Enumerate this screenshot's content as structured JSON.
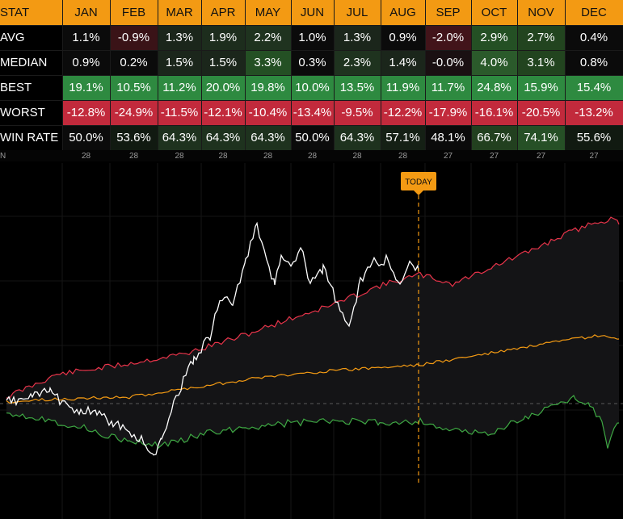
{
  "table": {
    "header": [
      "STAT",
      "JAN",
      "FEB",
      "MAR",
      "APR",
      "MAY",
      "JUN",
      "JUL",
      "AUG",
      "SEP",
      "OCT",
      "NOV",
      "DEC"
    ],
    "rows": [
      {
        "label": "AVG",
        "cells": [
          "1.1%",
          "-0.9%",
          "1.3%",
          "1.9%",
          "2.2%",
          "1.0%",
          "1.3%",
          "0.9%",
          "-2.0%",
          "2.9%",
          "2.7%",
          "0.4%"
        ],
        "colors": [
          "#0b0b0b",
          "#3a1317",
          "#1b261b",
          "#1d2d1d",
          "#1f331f",
          "#0b0b0b",
          "#1b261b",
          "#0b0b0b",
          "#42141a",
          "#245024",
          "#22441f",
          "#0b0b0b"
        ]
      },
      {
        "label": "MEDIAN",
        "cells": [
          "0.9%",
          "0.2%",
          "1.5%",
          "1.5%",
          "3.3%",
          "0.3%",
          "2.3%",
          "1.4%",
          "-0.0%",
          "4.0%",
          "3.1%",
          "0.8%"
        ],
        "colors": [
          "#0b0b0b",
          "#0b0b0b",
          "#1b261b",
          "#1b261b",
          "#245024",
          "#0b0b0b",
          "#1f331f",
          "#1b261b",
          "#1a1012",
          "#2b5a2b",
          "#22441f",
          "#0b0b0b"
        ]
      },
      {
        "label": "BEST",
        "cells": [
          "19.1%",
          "10.5%",
          "11.2%",
          "20.0%",
          "19.8%",
          "10.0%",
          "13.5%",
          "11.9%",
          "11.7%",
          "24.8%",
          "15.9%",
          "15.4%"
        ],
        "colors": [
          "#2e8a40",
          "#2e8a40",
          "#2e8a40",
          "#2e8a40",
          "#2e8a40",
          "#2e8a40",
          "#2e8a40",
          "#2e8a40",
          "#2e8a40",
          "#2e8a40",
          "#2e8a40",
          "#2e8a40"
        ]
      },
      {
        "label": "WORST",
        "cells": [
          "-12.8%",
          "-24.9%",
          "-11.5%",
          "-12.1%",
          "-10.4%",
          "-13.4%",
          "-9.5%",
          "-12.2%",
          "-17.9%",
          "-16.1%",
          "-20.5%",
          "-13.2%"
        ],
        "colors": [
          "#c22a3c",
          "#c22a3c",
          "#c22a3c",
          "#c22a3c",
          "#c22a3c",
          "#c22a3c",
          "#c22a3c",
          "#c22a3c",
          "#c22a3c",
          "#c22a3c",
          "#c22a3c",
          "#c22a3c"
        ]
      },
      {
        "label": "WIN RATE",
        "cells": [
          "50.0%",
          "53.6%",
          "64.3%",
          "64.3%",
          "64.3%",
          "50.0%",
          "64.3%",
          "57.1%",
          "48.1%",
          "66.7%",
          "74.1%",
          "55.6%"
        ],
        "colors": [
          "#0b0b0b",
          "#111a11",
          "#1e321e",
          "#1e321e",
          "#1e321e",
          "#0b0b0b",
          "#1e321e",
          "#152015",
          "#0b0b0b",
          "#22401f",
          "#265026",
          "#111a11"
        ]
      }
    ],
    "n_row": {
      "label": "N",
      "cells": [
        "28",
        "28",
        "28",
        "28",
        "28",
        "28",
        "28",
        "28",
        "27",
        "27",
        "27",
        "27"
      ]
    }
  },
  "chart": {
    "today_label": "TODAY",
    "colors": {
      "best": "#e8344a",
      "median": "#f39a13",
      "worst": "#3ea843",
      "current": "#ffffff",
      "today": "#f39a13",
      "band": "#141416"
    }
  }
}
